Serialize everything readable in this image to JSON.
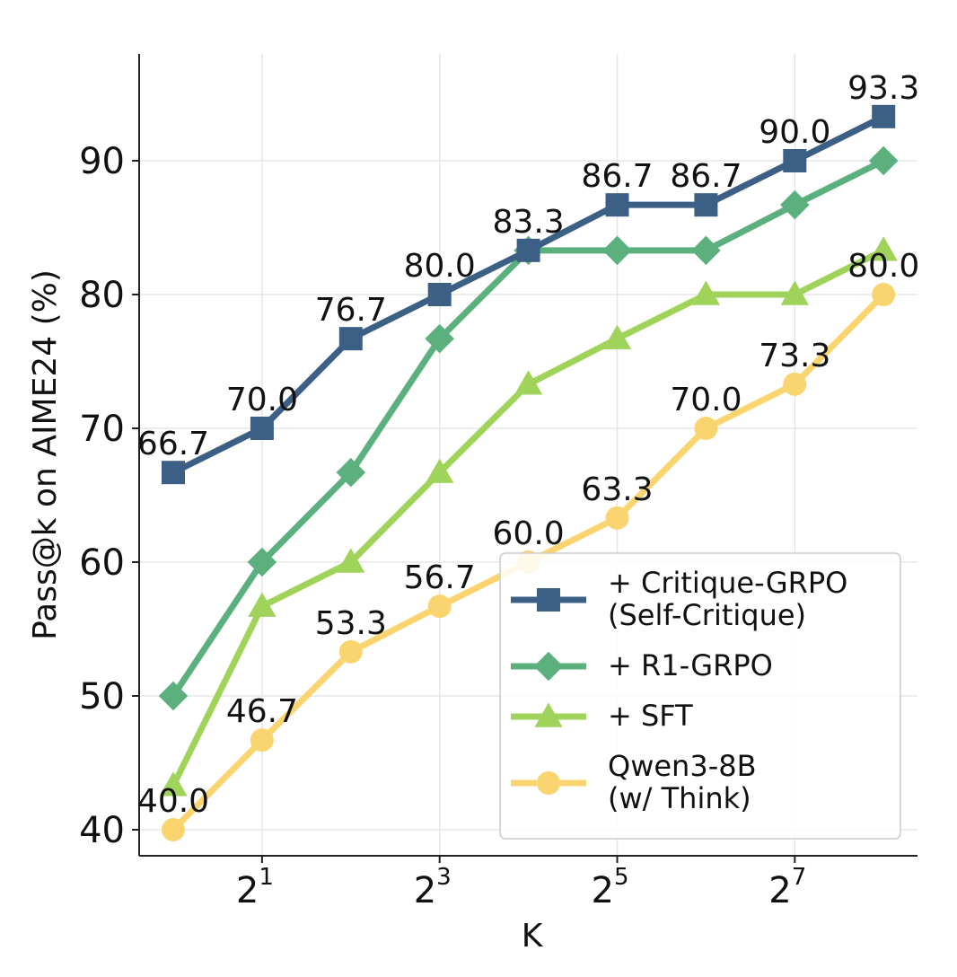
{
  "chart_data": {
    "type": "line",
    "xlabel": "K",
    "ylabel": "Pass@k on AIME24 (%)",
    "x_scale": "log2",
    "x": [
      1,
      2,
      4,
      8,
      16,
      32,
      64,
      128,
      256
    ],
    "xticks": [
      {
        "value": 2,
        "base": "2",
        "exp": "1"
      },
      {
        "value": 8,
        "base": "2",
        "exp": "3"
      },
      {
        "value": 32,
        "base": "2",
        "exp": "5"
      },
      {
        "value": 128,
        "base": "2",
        "exp": "7"
      }
    ],
    "yticks": [
      40,
      50,
      60,
      70,
      80,
      90
    ],
    "ylim": [
      38,
      98
    ],
    "grid": true,
    "legend_position": "bottom-right",
    "series": [
      {
        "name": "+ Critique-GRPO (Self-Critique)",
        "legend_lines": [
          "+ Critique-GRPO",
          "(Self-Critique)"
        ],
        "color": "#3b5f85",
        "marker": "square",
        "values": [
          66.7,
          70.0,
          76.7,
          80.0,
          83.3,
          86.7,
          86.7,
          90.0,
          93.3
        ],
        "labels": [
          "66.7",
          "70.0",
          "76.7",
          "80.0",
          "83.3",
          "86.7",
          "86.7",
          "90.0",
          "93.3"
        ]
      },
      {
        "name": "+ R1-GRPO",
        "legend_lines": [
          "+ R1-GRPO"
        ],
        "color": "#5bb07d",
        "marker": "diamond",
        "values": [
          50.0,
          60.0,
          66.7,
          76.7,
          83.3,
          83.3,
          83.3,
          86.7,
          90.0
        ],
        "labels": []
      },
      {
        "name": "+ SFT",
        "legend_lines": [
          "+ SFT"
        ],
        "color": "#9fd35a",
        "marker": "triangle",
        "values": [
          43.3,
          56.7,
          60.0,
          66.7,
          73.3,
          76.7,
          80.0,
          80.0,
          83.3
        ],
        "labels": []
      },
      {
        "name": "Qwen3-8B (w/ Think)",
        "legend_lines": [
          "Qwen3-8B",
          "(w/ Think)"
        ],
        "color": "#fad56f",
        "marker": "circle",
        "values": [
          40.0,
          46.7,
          53.3,
          56.7,
          60.0,
          63.3,
          70.0,
          73.3,
          80.0
        ],
        "labels": [
          "40.0",
          "46.7",
          "53.3",
          "56.7",
          "60.0",
          "63.3",
          "70.0",
          "73.3",
          "80.0"
        ]
      }
    ]
  }
}
